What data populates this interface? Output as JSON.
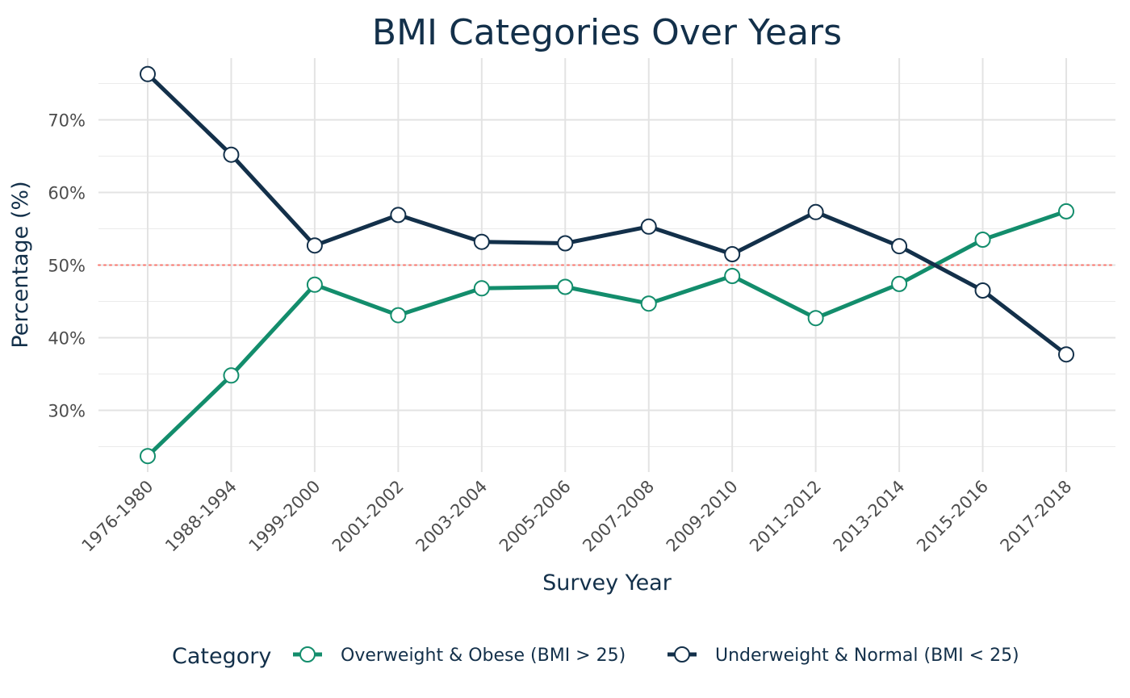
{
  "chart_data": {
    "type": "line",
    "title": "BMI Categories Over Years",
    "xlabel": "Survey Year",
    "ylabel": "Percentage (%)",
    "categories": [
      "1976-1980",
      "1988-1994",
      "1999-2000",
      "2001-2002",
      "2003-2004",
      "2005-2006",
      "2007-2008",
      "2009-2010",
      "2011-2012",
      "2013-2014",
      "2015-2016",
      "2017-2018"
    ],
    "ylim": [
      21.5,
      78.5
    ],
    "yticks": [
      30,
      40,
      50,
      60,
      70
    ],
    "ytick_labels": [
      "30%",
      "40%",
      "50%",
      "60%",
      "70%"
    ],
    "reference_line": {
      "y": 50,
      "color": "#f8766d",
      "style": "dotted"
    },
    "grid": true,
    "legend": {
      "title": "Category",
      "position": "bottom"
    },
    "series": [
      {
        "name": "Overweight & Obese (BMI > 25)",
        "color": "#138d6c",
        "values": [
          23.7,
          34.8,
          47.3,
          43.1,
          46.8,
          47.0,
          44.7,
          48.5,
          42.7,
          47.4,
          53.5,
          57.4
        ]
      },
      {
        "name": "Underweight & Normal (BMI < 25)",
        "color": "#13304a",
        "values": [
          76.3,
          65.2,
          52.7,
          56.9,
          53.2,
          53.0,
          55.3,
          51.5,
          57.3,
          52.6,
          46.5,
          37.7
        ]
      }
    ]
  }
}
